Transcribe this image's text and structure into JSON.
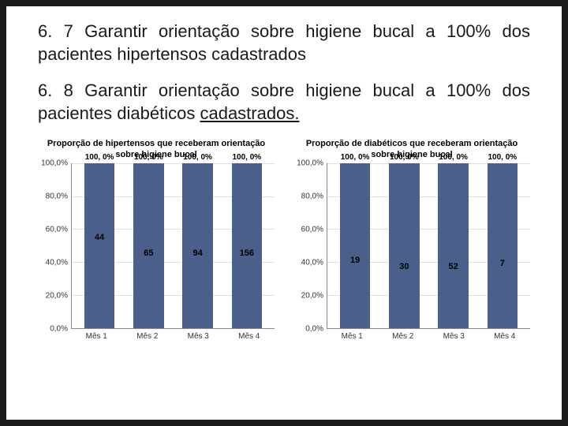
{
  "headings": {
    "h1_pre": "6. 7",
    "h1_main": " Garantir orientação sobre higiene bucal a 100% dos pacientes hipertensos cadastrados",
    "h2_pre": "6. 8 Garantir orientação sobre higiene bucal a 100% dos pacientes diabéticos ",
    "h2_end": "cadastrados."
  },
  "y_axis": {
    "ticks": [
      "100,0%",
      "80,0%",
      "60,0%",
      "40,0%",
      "20,0%",
      "0,0%"
    ],
    "positions_pct": [
      0,
      20,
      40,
      60,
      80,
      100
    ],
    "grid_color": "#e0e0e0",
    "axis_color": "#888888"
  },
  "chart_left": {
    "title": "Proporção de hipertensos que receberam orientação sobre higiene bucal",
    "type": "bar",
    "bar_color": "#4a5f8a",
    "categories": [
      "Mês 1",
      "Mês 2",
      "Mês 3",
      "Mês 4"
    ],
    "values_pct": [
      100,
      100,
      100,
      100
    ],
    "value_labels": [
      "100, 0%",
      "100, 0%",
      "100, 0%",
      "100, 0%"
    ],
    "counts": [
      "44",
      "65",
      "94",
      "156"
    ],
    "count_top_pct": [
      42,
      52,
      52,
      52
    ]
  },
  "chart_right": {
    "title": "Proporção de diabéticos que receberam orientação sobre higiene bucal",
    "type": "bar",
    "bar_color": "#4a5f8a",
    "categories": [
      "Mês 1",
      "Mês 2",
      "Mês 3",
      "Mês 4"
    ],
    "values_pct": [
      100,
      100,
      100,
      100
    ],
    "value_labels": [
      "100, 0%",
      "100, 0%",
      "100, 0%",
      "100, 0%"
    ],
    "counts": [
      "19",
      "30",
      "52",
      "7"
    ],
    "count_top_pct": [
      56,
      60,
      60,
      58
    ]
  },
  "colors": {
    "slide_bg": "#ffffff",
    "body_bg": "#1a1a1a",
    "text": "#1a1a1a"
  }
}
